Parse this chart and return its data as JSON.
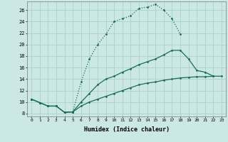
{
  "xlabel": "Humidex (Indice chaleur)",
  "bg_color": "#cce8e4",
  "grid_color": "#aad0cc",
  "line_color": "#1a6b5a",
  "xlim": [
    -0.5,
    23.5
  ],
  "ylim": [
    7.5,
    27.5
  ],
  "xtick_labels": [
    "0",
    "1",
    "2",
    "3",
    "4",
    "5",
    "6",
    "7",
    "8",
    "9",
    "10",
    "11",
    "12",
    "13",
    "14",
    "15",
    "16",
    "17",
    "18",
    "19",
    "20",
    "21",
    "22",
    "23"
  ],
  "ytick_vals": [
    8,
    10,
    12,
    14,
    16,
    18,
    20,
    22,
    24,
    26
  ],
  "line1_x": [
    0,
    1,
    2,
    3,
    4,
    5,
    6,
    7,
    8,
    9,
    10,
    11,
    12,
    13,
    14,
    15,
    16,
    17,
    18
  ],
  "line1_y": [
    10.5,
    9.9,
    9.3,
    9.3,
    8.2,
    8.3,
    13.5,
    17.5,
    20.0,
    21.8,
    24.0,
    24.5,
    25.0,
    26.3,
    26.5,
    27.0,
    26.0,
    24.5,
    21.8
  ],
  "line1_style": "dotted",
  "line2_x": [
    0,
    1,
    2,
    3,
    4,
    5,
    6,
    7,
    8,
    9,
    10,
    11,
    12,
    13,
    14,
    15,
    16,
    17,
    18,
    19,
    20,
    21,
    22
  ],
  "line2_y": [
    10.5,
    9.9,
    9.3,
    9.3,
    8.2,
    8.3,
    10.0,
    11.5,
    13.0,
    14.0,
    14.5,
    15.2,
    15.8,
    16.5,
    17.0,
    17.5,
    18.2,
    19.0,
    19.0,
    17.5,
    15.5,
    15.2,
    14.5
  ],
  "line2_style": "solid",
  "line3_x": [
    0,
    1,
    2,
    3,
    4,
    5,
    6,
    7,
    8,
    9,
    10,
    11,
    12,
    13,
    14,
    15,
    16,
    17,
    18,
    19,
    20,
    21,
    22,
    23
  ],
  "line3_y": [
    10.5,
    9.9,
    9.3,
    9.3,
    8.2,
    8.3,
    9.3,
    10.0,
    10.5,
    11.0,
    11.5,
    12.0,
    12.5,
    13.0,
    13.3,
    13.5,
    13.8,
    14.0,
    14.2,
    14.3,
    14.4,
    14.4,
    14.5,
    14.5
  ],
  "line3_style": "solid"
}
